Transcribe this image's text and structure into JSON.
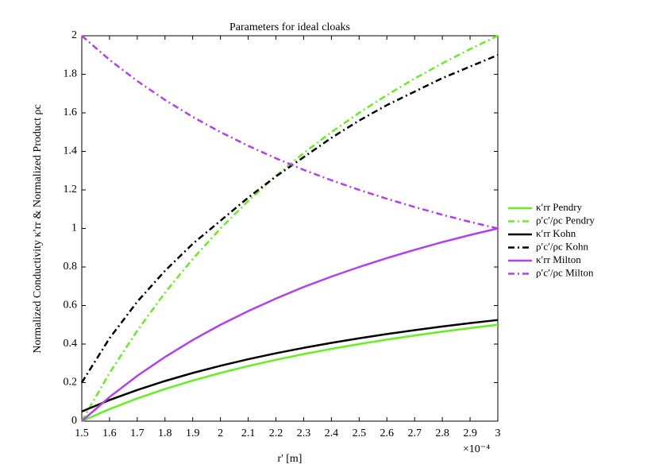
{
  "chart_data": {
    "type": "line",
    "title": "Parameters for ideal cloaks",
    "xlabel": "r' [m]",
    "ylabel": "Normalized Conductivity κ′rr & Normalized Product ρc",
    "x_multiplier": "×10⁻⁴",
    "x": [
      1.5,
      1.6,
      1.7,
      1.8,
      1.9,
      2.0,
      2.1,
      2.2,
      2.3,
      2.4,
      2.5,
      2.6,
      2.7,
      2.8,
      2.9,
      3.0
    ],
    "xlim": [
      1.5,
      3
    ],
    "xticks": [
      1.5,
      1.6,
      1.7,
      1.8,
      1.9,
      2,
      2.1,
      2.2,
      2.3,
      2.4,
      2.5,
      2.6,
      2.7,
      2.8,
      2.9,
      3
    ],
    "ylim": [
      0,
      2
    ],
    "yticks": [
      0,
      0.2,
      0.4,
      0.6,
      0.8,
      1,
      1.2,
      1.4,
      1.6,
      1.8,
      2
    ],
    "legend": "outside-right",
    "series": [
      {
        "name": "κ′rr Pendry",
        "color": "#66ee22",
        "style": "solid",
        "values": [
          0,
          0.0625,
          0.1176,
          0.1667,
          0.2105,
          0.25,
          0.2857,
          0.3182,
          0.3478,
          0.375,
          0.4,
          0.4231,
          0.4444,
          0.4643,
          0.4828,
          0.5
        ]
      },
      {
        "name": "ρ′c′/ρc Pendry",
        "color": "#66ee22",
        "style": "dashdot",
        "values": [
          0,
          0.25,
          0.47,
          0.667,
          0.842,
          1.0,
          1.143,
          1.273,
          1.391,
          1.5,
          1.6,
          1.692,
          1.778,
          1.857,
          1.931,
          2.0
        ]
      },
      {
        "name": "κ′rr Kohn",
        "color": "#000000",
        "style": "solid",
        "values": [
          0.05,
          0.1094,
          0.1618,
          0.2083,
          0.25,
          0.2875,
          0.3214,
          0.3523,
          0.3804,
          0.4063,
          0.43,
          0.452,
          0.4722,
          0.4911,
          0.5086,
          0.525
        ]
      },
      {
        "name": "ρ′c′/ρc Kohn",
        "color": "#000000",
        "style": "dashdot",
        "values": [
          0.2,
          0.43,
          0.62,
          0.78,
          0.92,
          1.04,
          1.16,
          1.27,
          1.37,
          1.47,
          1.56,
          1.64,
          1.71,
          1.78,
          1.84,
          1.9
        ]
      },
      {
        "name": "κ′rr Milton",
        "color": "#b040f0",
        "style": "solid",
        "values": [
          0,
          0.125,
          0.235,
          0.333,
          0.421,
          0.5,
          0.571,
          0.636,
          0.696,
          0.75,
          0.8,
          0.846,
          0.889,
          0.929,
          0.966,
          1.0
        ]
      },
      {
        "name": "ρ′c′/ρc Milton",
        "color": "#b040f0",
        "style": "dashdot",
        "values": [
          2,
          1.875,
          1.765,
          1.667,
          1.579,
          1.5,
          1.429,
          1.364,
          1.304,
          1.25,
          1.2,
          1.154,
          1.111,
          1.071,
          1.034,
          1.0
        ]
      }
    ]
  }
}
